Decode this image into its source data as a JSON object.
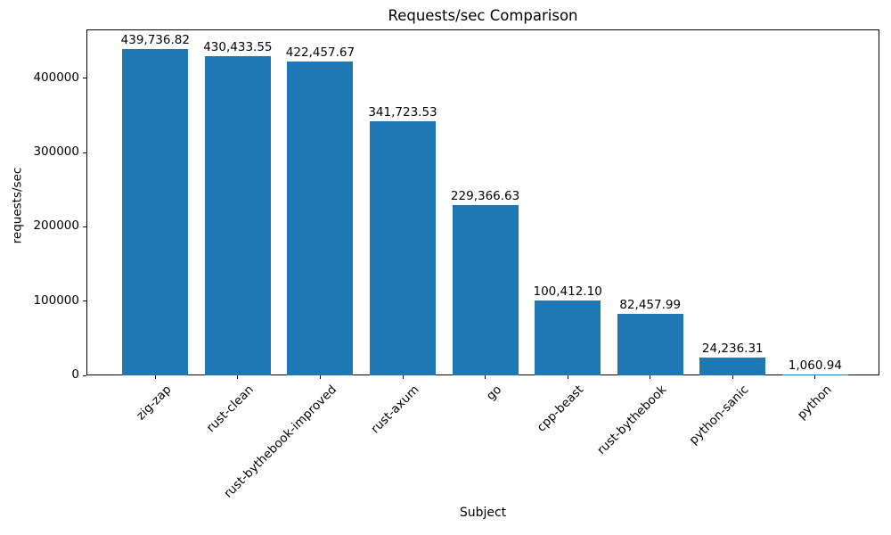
{
  "chart_data": {
    "type": "bar",
    "title": "Requests/sec Comparison",
    "xlabel": "Subject",
    "ylabel": "requests/sec",
    "categories": [
      "zig-zap",
      "rust-clean",
      "rust-bythebook-improved",
      "rust-axum",
      "go",
      "cpp-beast",
      "rust-bythebook",
      "python-sanic",
      "python"
    ],
    "values": [
      439736.82,
      430433.55,
      422457.67,
      341723.53,
      229366.63,
      100412.1,
      82457.99,
      24236.31,
      1060.94
    ],
    "bar_value_labels": [
      "439,736.82",
      "430,433.55",
      "422,457.67",
      "341,723.53",
      "229,366.63",
      "100,412.10",
      "82,457.99",
      "24,236.31",
      "1,060.94"
    ],
    "y_ticks": [
      0,
      100000,
      200000,
      300000,
      400000
    ],
    "ylim": [
      0,
      466000
    ],
    "bar_color": "#1f77b4",
    "axis_color": "#000000",
    "text_color": "#000000",
    "background_color": "#ffffff",
    "grid": false,
    "legend_position": "none"
  }
}
